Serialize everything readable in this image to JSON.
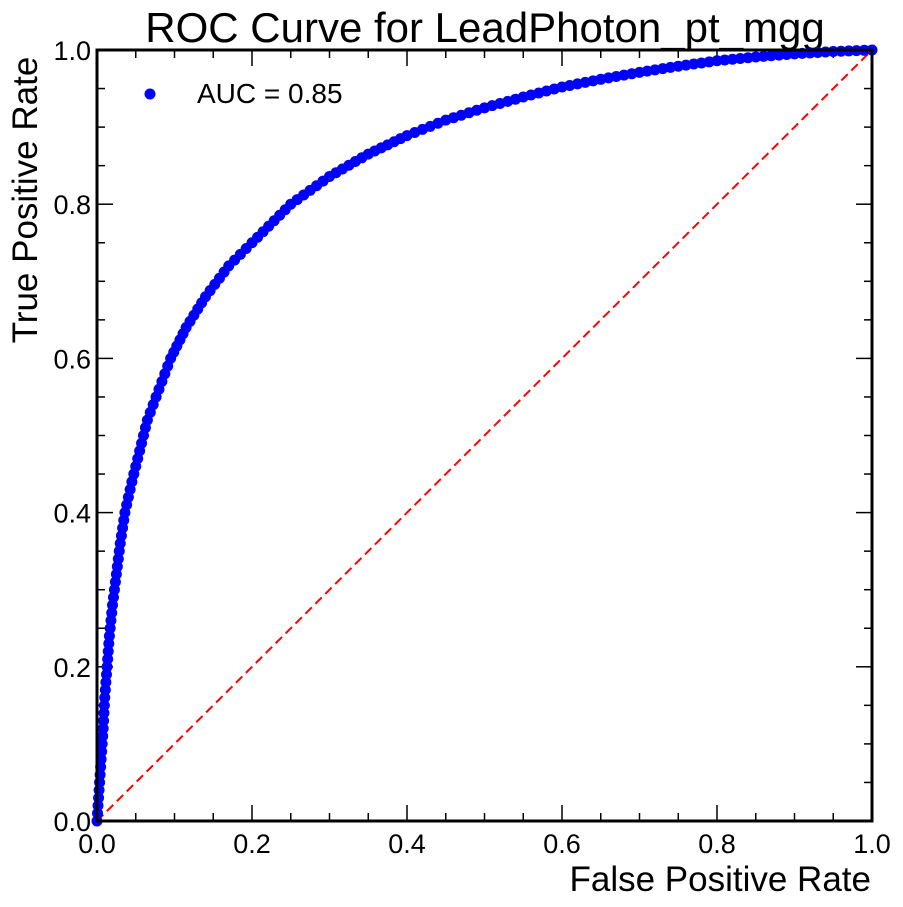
{
  "chart_data": {
    "type": "scatter",
    "title": "ROC Curve for LeadPhoton_pt_mgg",
    "xlabel": "False Positive Rate",
    "ylabel": "True Positive Rate",
    "xlim": [
      0.0,
      1.0
    ],
    "ylim": [
      0.0,
      1.0
    ],
    "x_ticks": [
      "0.0",
      "0.2",
      "0.4",
      "0.6",
      "0.8",
      "1.0"
    ],
    "y_ticks": [
      "0.0",
      "0.2",
      "0.4",
      "0.6",
      "0.8",
      "1.0"
    ],
    "grid": false,
    "legend_position": "top-left",
    "series": [
      {
        "name": "AUC = 0.85",
        "color": "#0000ff",
        "marker": "circle",
        "curve_points": [
          {
            "x": 0.0,
            "y": 0.0
          },
          {
            "x": 0.002,
            "y": 0.03
          },
          {
            "x": 0.004,
            "y": 0.06
          },
          {
            "x": 0.006,
            "y": 0.09
          },
          {
            "x": 0.008,
            "y": 0.12
          },
          {
            "x": 0.01,
            "y": 0.16
          },
          {
            "x": 0.013,
            "y": 0.2
          },
          {
            "x": 0.016,
            "y": 0.24
          },
          {
            "x": 0.02,
            "y": 0.28
          },
          {
            "x": 0.025,
            "y": 0.32
          },
          {
            "x": 0.03,
            "y": 0.36
          },
          {
            "x": 0.036,
            "y": 0.4
          },
          {
            "x": 0.045,
            "y": 0.44
          },
          {
            "x": 0.055,
            "y": 0.48
          },
          {
            "x": 0.065,
            "y": 0.52
          },
          {
            "x": 0.08,
            "y": 0.56
          },
          {
            "x": 0.095,
            "y": 0.6
          },
          {
            "x": 0.115,
            "y": 0.64
          },
          {
            "x": 0.14,
            "y": 0.68
          },
          {
            "x": 0.17,
            "y": 0.72
          },
          {
            "x": 0.2,
            "y": 0.75
          },
          {
            "x": 0.25,
            "y": 0.8
          },
          {
            "x": 0.3,
            "y": 0.836
          },
          {
            "x": 0.35,
            "y": 0.865
          },
          {
            "x": 0.4,
            "y": 0.889
          },
          {
            "x": 0.45,
            "y": 0.909
          },
          {
            "x": 0.5,
            "y": 0.925
          },
          {
            "x": 0.55,
            "y": 0.939
          },
          {
            "x": 0.6,
            "y": 0.952
          },
          {
            "x": 0.65,
            "y": 0.962
          },
          {
            "x": 0.7,
            "y": 0.971
          },
          {
            "x": 0.75,
            "y": 0.979
          },
          {
            "x": 0.8,
            "y": 0.986
          },
          {
            "x": 0.85,
            "y": 0.991
          },
          {
            "x": 0.9,
            "y": 0.995
          },
          {
            "x": 0.95,
            "y": 0.998
          },
          {
            "x": 1.0,
            "y": 1.0
          }
        ]
      },
      {
        "name": "random-baseline",
        "color": "#ff0000",
        "style": "dashed",
        "points": [
          {
            "x": 0.0,
            "y": 0.0
          },
          {
            "x": 1.0,
            "y": 1.0
          }
        ]
      }
    ]
  }
}
